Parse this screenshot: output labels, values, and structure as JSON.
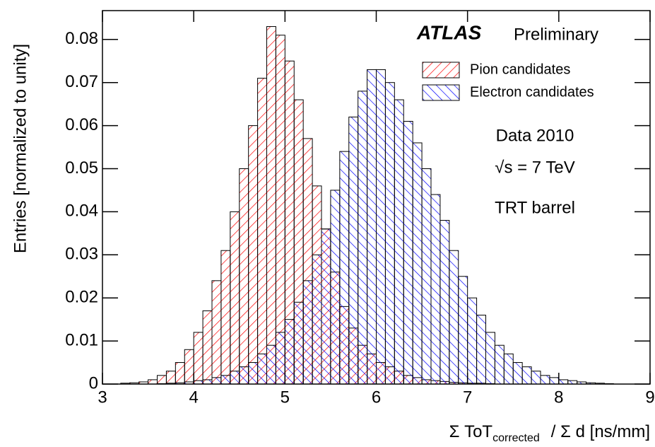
{
  "chart_data": {
    "type": "histogram",
    "experiment": "ATLAS",
    "status": "Preliminary",
    "annotations": [
      "Data 2010",
      "√s = 7 TeV",
      "TRT barrel"
    ],
    "x_label": {
      "main": "Σ ToT",
      "sub": "corrected",
      "rest": "/  Σ d  [ns/mm]"
    },
    "y_label": "Entries  [normalized to unity]",
    "bins": [
      3.0,
      3.1,
      3.2,
      3.3,
      3.4,
      3.5,
      3.6,
      3.7,
      3.8,
      3.9,
      4.0,
      4.1,
      4.2,
      4.3,
      4.4,
      4.5,
      4.6,
      4.7,
      4.8,
      4.9,
      5.0,
      5.1,
      5.2,
      5.3,
      5.4,
      5.5,
      5.6,
      5.7,
      5.8,
      5.9,
      6.0,
      6.1,
      6.2,
      6.3,
      6.4,
      6.5,
      6.6,
      6.7,
      6.8,
      6.9,
      7.0,
      7.1,
      7.2,
      7.3,
      7.4,
      7.5,
      7.6,
      7.7,
      7.8,
      7.9,
      8.0,
      8.1,
      8.2,
      8.3,
      8.4,
      8.5,
      8.6,
      8.7,
      8.8,
      8.9,
      9.0
    ],
    "series": [
      {
        "name": "Pion candidates",
        "color": "#ff0000",
        "hatch": "down",
        "values": [
          0,
          0,
          0.0002,
          0.0003,
          0.0005,
          0.001,
          0.002,
          0.003,
          0.005,
          0.008,
          0.012,
          0.017,
          0.024,
          0.031,
          0.04,
          0.05,
          0.06,
          0.071,
          0.083,
          0.081,
          0.075,
          0.066,
          0.057,
          0.046,
          0.036,
          0.026,
          0.018,
          0.013,
          0.009,
          0.007,
          0.005,
          0.004,
          0.003,
          0.002,
          0.0015,
          0.001,
          0.0008,
          0.0006,
          0.0004,
          0.0003,
          0.0002,
          0.0002,
          0.0001,
          0,
          0,
          0,
          0,
          0,
          0,
          0,
          0,
          0,
          0,
          0,
          0,
          0,
          0,
          0,
          0,
          0
        ]
      },
      {
        "name": "Electron candidates",
        "color": "#0000ff",
        "hatch": "up",
        "values": [
          0,
          0,
          0,
          0,
          0,
          0,
          0.0001,
          0.0002,
          0.0003,
          0.0005,
          0.0008,
          0.001,
          0.0015,
          0.002,
          0.003,
          0.004,
          0.005,
          0.007,
          0.009,
          0.012,
          0.015,
          0.019,
          0.024,
          0.03,
          0.036,
          0.045,
          0.054,
          0.062,
          0.068,
          0.073,
          0.073,
          0.07,
          0.066,
          0.061,
          0.056,
          0.05,
          0.044,
          0.038,
          0.031,
          0.025,
          0.02,
          0.016,
          0.012,
          0.009,
          0.007,
          0.005,
          0.004,
          0.003,
          0.002,
          0.0015,
          0.001,
          0.0008,
          0.0005,
          0.0003,
          0.0002,
          0.0001,
          0,
          0,
          0,
          0
        ]
      }
    ],
    "xlim": [
      3,
      9
    ],
    "ylim": [
      0,
      0.0867
    ],
    "xticks": [
      3,
      4,
      5,
      6,
      7,
      8,
      9
    ],
    "yticks": [
      0,
      0.01,
      0.02,
      0.03,
      0.04,
      0.05,
      0.06,
      0.07,
      0.08
    ]
  }
}
